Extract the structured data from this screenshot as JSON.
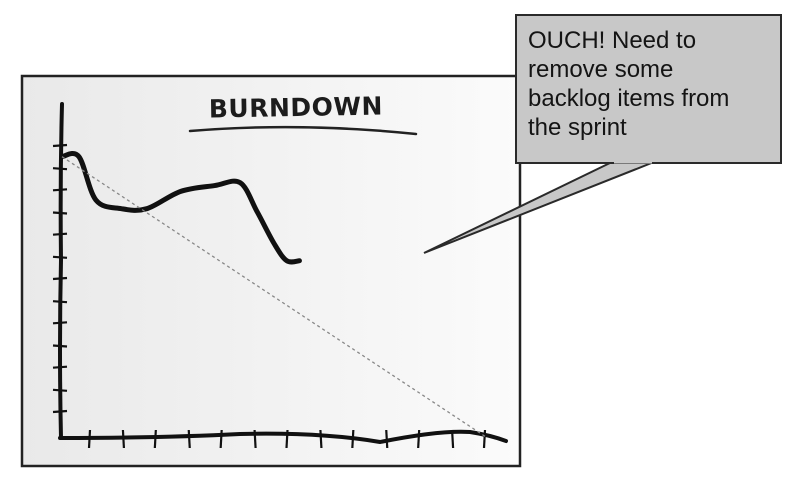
{
  "chart_title": "BURNDOWN",
  "callout": {
    "lines": [
      "OUCH! Need to",
      "remove some",
      "backlog items from",
      "the sprint"
    ]
  },
  "colors": {
    "board_fill_left": "#e9e9e9",
    "board_fill_right": "#fbfbfb",
    "board_border": "#222222",
    "ink": "#111111",
    "ideal_line": "#888888",
    "callout_fill": "#c8c8c8",
    "callout_border": "#2a2a2a"
  },
  "chart_data": {
    "type": "line",
    "title": "BURNDOWN",
    "xlabel": "",
    "ylabel": "",
    "x_ticks": 13,
    "y_ticks": 13,
    "series": [
      {
        "values": [
          [
            0.0,
            0.97
          ],
          [
            0.04,
            0.97
          ],
          [
            0.08,
            0.82
          ],
          [
            0.14,
            0.79
          ],
          [
            0.2,
            0.79
          ],
          [
            0.28,
            0.85
          ],
          [
            0.36,
            0.87
          ],
          [
            0.42,
            0.88
          ],
          [
            0.46,
            0.78
          ],
          [
            0.5,
            0.67
          ],
          [
            0.53,
            0.61
          ],
          [
            0.56,
            0.61
          ]
        ]
      },
      {
        "values": [
          [
            0.0,
            0.97
          ],
          [
            1.0,
            0.0
          ]
        ],
        "style": "dashed"
      }
    ],
    "xlim": [
      0,
      1
    ],
    "ylim": [
      0,
      1
    ]
  }
}
